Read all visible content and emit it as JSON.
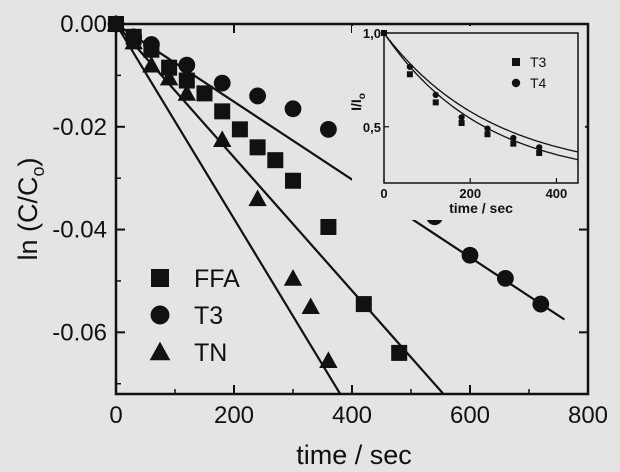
{
  "chart_data": [
    {
      "type": "scatter",
      "xlabel": "time / sec",
      "ylabel": "ln (C/C",
      "ylabel_sub": "o",
      "ylabel_close": ")",
      "xlim": [
        0,
        800
      ],
      "ylim": [
        -0.072,
        0.0
      ],
      "xticks": [
        0,
        200,
        400,
        600,
        800
      ],
      "xtick_labels": [
        "0",
        "200",
        "400",
        "600",
        "800"
      ],
      "yticks": [
        0.0,
        -0.02,
        -0.04,
        -0.06
      ],
      "ytick_labels": [
        "0.00",
        "-0.02",
        "-0.04",
        "-0.06"
      ],
      "legend_position": "bottom-left",
      "series": [
        {
          "name": "FFA",
          "marker": "square",
          "x": [
            0,
            30,
            60,
            90,
            120,
            150,
            180,
            210,
            240,
            270,
            300,
            360,
            420,
            480
          ],
          "y": [
            0.0,
            -0.0025,
            -0.005,
            -0.0085,
            -0.011,
            -0.0135,
            -0.017,
            -0.0205,
            -0.024,
            -0.0265,
            -0.0305,
            -0.0395,
            -0.0545,
            -0.064
          ],
          "fit": [
            [
              0,
              0.0
            ],
            [
              555,
              -0.072
            ]
          ]
        },
        {
          "name": "T3",
          "marker": "circle",
          "x": [
            0,
            30,
            60,
            120,
            180,
            240,
            300,
            360,
            420,
            480,
            540,
            600,
            660,
            720
          ],
          "y": [
            0.0,
            -0.0025,
            -0.004,
            -0.008,
            -0.0115,
            -0.014,
            -0.0165,
            -0.0205,
            -0.025,
            -0.0305,
            -0.0375,
            -0.045,
            -0.0495,
            -0.0545
          ],
          "fit": [
            [
              0,
              0.0
            ],
            [
              760,
              -0.0575
            ]
          ]
        },
        {
          "name": "TN",
          "marker": "triangle",
          "x": [
            0,
            30,
            60,
            90,
            120,
            180,
            240,
            300,
            330,
            360
          ],
          "y": [
            0.0,
            -0.0035,
            -0.008,
            -0.0105,
            -0.0135,
            -0.0225,
            -0.034,
            -0.0495,
            -0.055,
            -0.0655
          ],
          "fit": [
            [
              0,
              0.0
            ],
            [
              380,
              -0.072
            ]
          ]
        }
      ]
    },
    {
      "type": "scatter",
      "xlabel": "time / sec",
      "ylabel": "I/I",
      "ylabel_sub": "o",
      "xlim": [
        0,
        450
      ],
      "ylim": [
        0.2,
        1.0
      ],
      "xticks": [
        0,
        200,
        400
      ],
      "xtick_labels": [
        "0",
        "200",
        "400"
      ],
      "yticks": [
        1.0,
        0.5
      ],
      "ytick_labels": [
        "1,0",
        "0,5"
      ],
      "legend_position": "top-right",
      "series": [
        {
          "name": "T3",
          "marker": "square",
          "x": [
            0,
            60,
            120,
            180,
            240,
            300,
            360
          ],
          "y": [
            1.0,
            0.78,
            0.63,
            0.52,
            0.46,
            0.41,
            0.36
          ]
        },
        {
          "name": "T4",
          "marker": "circle",
          "x": [
            0,
            60,
            120,
            180,
            240,
            300,
            360
          ],
          "y": [
            1.0,
            0.82,
            0.67,
            0.55,
            0.49,
            0.44,
            0.39
          ]
        }
      ]
    }
  ]
}
